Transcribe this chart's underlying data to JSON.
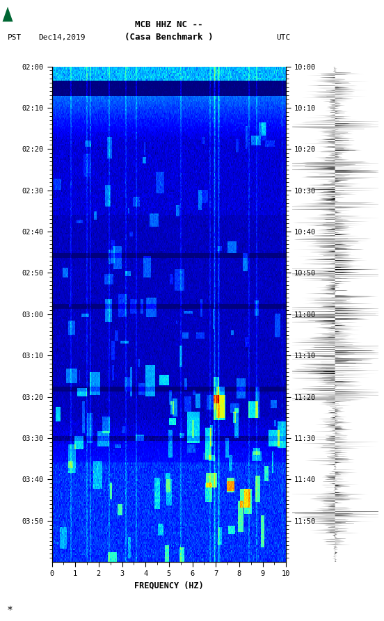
{
  "title_line1": "MCB HHZ NC --",
  "title_line2": "(Casa Benchmark )",
  "pst_label": "PST",
  "date_label": "Dec14,2019",
  "utc_label": "UTC",
  "left_times": [
    "02:00",
    "02:10",
    "02:20",
    "02:30",
    "02:40",
    "02:50",
    "03:00",
    "03:10",
    "03:20",
    "03:30",
    "03:40",
    "03:50"
  ],
  "right_times": [
    "10:00",
    "10:10",
    "10:20",
    "10:30",
    "10:40",
    "10:50",
    "11:00",
    "11:10",
    "11:20",
    "11:30",
    "11:40",
    "11:50"
  ],
  "freq_ticks": [
    0,
    1,
    2,
    3,
    4,
    5,
    6,
    7,
    8,
    9,
    10
  ],
  "freq_label": "FREQUENCY (HZ)",
  "bg_color": "#ffffff",
  "usgs_green": "#006633",
  "spectrogram_cmap": "jet",
  "n_time": 550,
  "n_freq": 300,
  "seed": 12345
}
